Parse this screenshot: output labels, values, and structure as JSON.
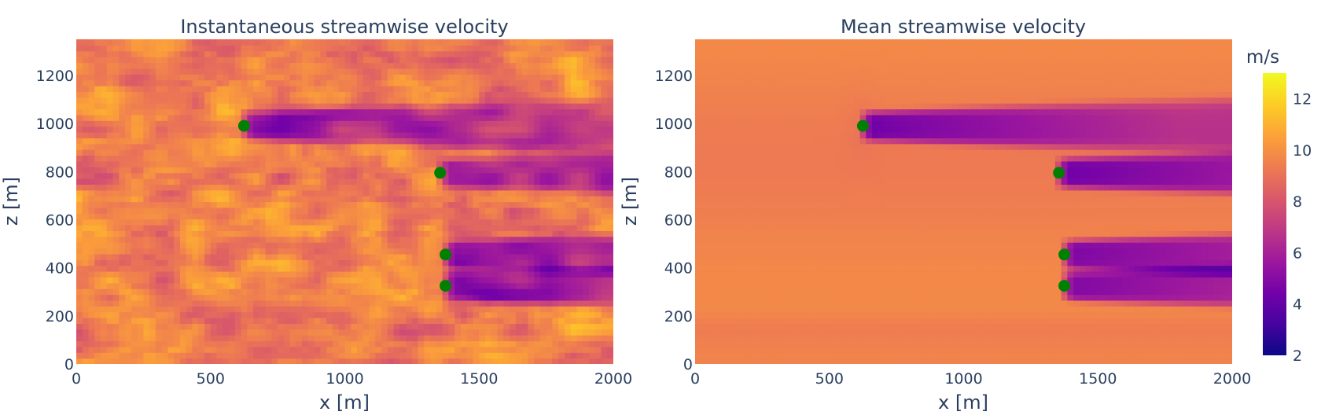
{
  "chart_data": [
    {
      "type": "heatmap",
      "title": "Instantaneous streamwise velocity",
      "xlabel": "x [m]",
      "ylabel": "z [m]",
      "xlim": [
        0,
        2000
      ],
      "ylim": [
        0,
        1350
      ],
      "xticks": [
        "0",
        "500",
        "1000",
        "1500",
        "2000"
      ],
      "yticks": [
        "0",
        "200",
        "400",
        "600",
        "800",
        "1000",
        "1200"
      ],
      "colorscale": "plasma",
      "zrange": [
        2,
        13
      ],
      "field": "instantaneous",
      "turbines": [
        {
          "x": 625,
          "z": 990
        },
        {
          "x": 1355,
          "z": 795
        },
        {
          "x": 1375,
          "z": 455
        },
        {
          "x": 1375,
          "z": 325
        }
      ]
    },
    {
      "type": "heatmap",
      "title": "Mean streamwise velocity",
      "xlabel": "x [m]",
      "ylabel": "z [m]",
      "xlim": [
        0,
        2000
      ],
      "ylim": [
        0,
        1350
      ],
      "xticks": [
        "0",
        "500",
        "1000",
        "1500",
        "2000"
      ],
      "yticks": [
        "0",
        "200",
        "400",
        "600",
        "800",
        "1000",
        "1200"
      ],
      "colorscale": "plasma",
      "zrange": [
        2,
        13
      ],
      "field": "mean",
      "turbines": [
        {
          "x": 625,
          "z": 990
        },
        {
          "x": 1355,
          "z": 795
        },
        {
          "x": 1375,
          "z": 455
        },
        {
          "x": 1375,
          "z": 325
        }
      ]
    }
  ],
  "colorbar": {
    "title": "m/s",
    "ticks": [
      "2",
      "4",
      "6",
      "8",
      "10",
      "12"
    ]
  },
  "colors": {
    "text": "#2a3f5f",
    "turbine_marker": "#008000"
  }
}
